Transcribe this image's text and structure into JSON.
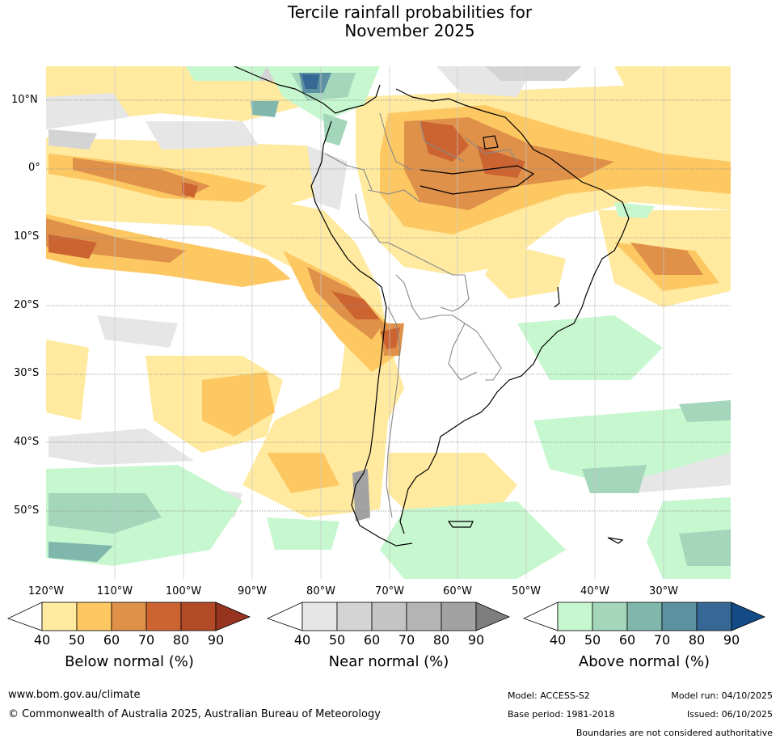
{
  "title": {
    "line1": "Tercile rainfall probabilities for",
    "line2": "November 2025"
  },
  "map": {
    "lat_labels": [
      "10°N",
      "0°",
      "10°S",
      "20°S",
      "30°S",
      "40°S",
      "50°S"
    ],
    "lon_labels": [
      "120°W",
      "110°W",
      "100°W",
      "90°W",
      "80°W",
      "70°W",
      "60°W",
      "50°W",
      "40°W",
      "30°W"
    ]
  },
  "colorbars": {
    "below": {
      "label": "Below normal (%)",
      "ticks": [
        "40",
        "50",
        "60",
        "70",
        "80",
        "90"
      ],
      "colors": [
        "#ffffff",
        "#ffeaa0",
        "#fdc862",
        "#df914a",
        "#cc6432",
        "#b24a28",
        "#963420"
      ]
    },
    "near": {
      "label": "Near normal (%)",
      "ticks": [
        "40",
        "50",
        "60",
        "70",
        "80",
        "90"
      ],
      "colors": [
        "#ffffff",
        "#e6e6e6",
        "#d4d4d4",
        "#c4c4c4",
        "#b4b4b4",
        "#a2a2a2",
        "#7e7e7e"
      ]
    },
    "above": {
      "label": "Above normal (%)",
      "ticks": [
        "40",
        "50",
        "60",
        "70",
        "80",
        "90"
      ],
      "colors": [
        "#ffffff",
        "#c6f7ce",
        "#a3d6bb",
        "#7fb7ad",
        "#5b91a1",
        "#366795",
        "#144b86"
      ]
    }
  },
  "footer": {
    "website": "www.bom.gov.au/climate",
    "copyright": "© Commonwealth of Australia 2025, Australian Bureau of Meteorology",
    "model": "Model: ACCESS-S2",
    "base_period": "Base period: 1981-2018",
    "model_run": "Model run: 04/10/2025",
    "issued": "Issued: 06/10/2025",
    "disclaimer": "Boundaries are not considered authoritative"
  }
}
